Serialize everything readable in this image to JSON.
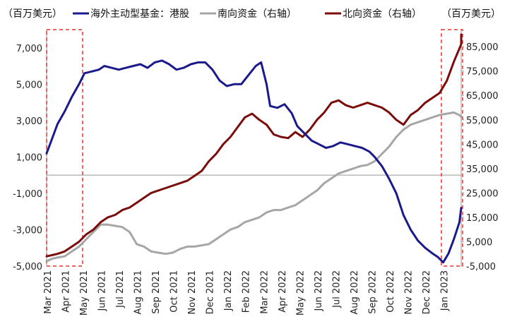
{
  "chart_data": {
    "type": "line",
    "left_unit": "（百万美元）",
    "right_unit": "（百万美元）",
    "x_labels": [
      "Mar 2021",
      "Apr 2021",
      "May 2021",
      "Jun 2021",
      "Jul 2021",
      "Aug 2021",
      "Sep 2021",
      "Oct 2021",
      "Nov 2021",
      "Dec 2021",
      "Jan 2022",
      "Feb 2022",
      "Mar 2022",
      "Apr 2022",
      "May 2022",
      "Jun 2022",
      "Jul 2022",
      "Aug 2022",
      "Sep 2022",
      "Oct 2022",
      "Nov 2022",
      "Dec 2022",
      "Jan 2023"
    ],
    "y_left": {
      "range": [
        -5000,
        8000
      ],
      "ticks": [
        "7,000",
        "5,000",
        "3,000",
        "1,000",
        "-1,000",
        "-3,000",
        "-5,000"
      ],
      "tick_values": [
        7000,
        5000,
        3000,
        1000,
        -1000,
        -3000,
        -5000
      ]
    },
    "y_right": {
      "range": [
        -5000,
        92000
      ],
      "ticks": [
        "85,000",
        "75,000",
        "65,000",
        "55,000",
        "45,000",
        "35,000",
        "25,000",
        "15,000",
        "5,000",
        "-5,000"
      ],
      "tick_values": [
        85000,
        75000,
        65000,
        55000,
        45000,
        35000,
        25000,
        15000,
        5000,
        -5000
      ]
    },
    "series": [
      {
        "name": "海外主动型基金：港股",
        "axis": "left",
        "color": "#1a1a8c",
        "points": [
          [
            0,
            1200
          ],
          [
            0.3,
            2000
          ],
          [
            0.6,
            2800
          ],
          [
            1,
            3500
          ],
          [
            1.4,
            4300
          ],
          [
            1.8,
            5000
          ],
          [
            2.1,
            5600
          ],
          [
            2.5,
            5700
          ],
          [
            2.9,
            5800
          ],
          [
            3.2,
            6000
          ],
          [
            3.6,
            5900
          ],
          [
            4,
            5800
          ],
          [
            4.4,
            5900
          ],
          [
            4.8,
            6000
          ],
          [
            5.2,
            6100
          ],
          [
            5.6,
            5900
          ],
          [
            6,
            6200
          ],
          [
            6.4,
            6300
          ],
          [
            6.8,
            6100
          ],
          [
            7.2,
            5800
          ],
          [
            7.6,
            5900
          ],
          [
            8,
            6100
          ],
          [
            8.4,
            6200
          ],
          [
            8.8,
            6200
          ],
          [
            9.2,
            5800
          ],
          [
            9.6,
            5200
          ],
          [
            10,
            4900
          ],
          [
            10.4,
            5000
          ],
          [
            10.8,
            5000
          ],
          [
            11.2,
            5500
          ],
          [
            11.6,
            6000
          ],
          [
            11.9,
            6200
          ],
          [
            12.2,
            5000
          ],
          [
            12.4,
            3800
          ],
          [
            12.8,
            3700
          ],
          [
            13.2,
            3900
          ],
          [
            13.6,
            3400
          ],
          [
            13.9,
            2700
          ],
          [
            14.3,
            2300
          ],
          [
            14.7,
            1900
          ],
          [
            15.1,
            1700
          ],
          [
            15.5,
            1500
          ],
          [
            15.9,
            1600
          ],
          [
            16.3,
            1800
          ],
          [
            16.7,
            1700
          ],
          [
            17.1,
            1600
          ],
          [
            17.5,
            1500
          ],
          [
            17.9,
            1300
          ],
          [
            18.2,
            1000
          ],
          [
            18.6,
            500
          ],
          [
            19,
            -200
          ],
          [
            19.4,
            -1000
          ],
          [
            19.8,
            -2200
          ],
          [
            20.2,
            -3000
          ],
          [
            20.6,
            -3600
          ],
          [
            21,
            -4000
          ],
          [
            21.4,
            -4300
          ],
          [
            21.7,
            -4500
          ],
          [
            22,
            -4800
          ],
          [
            22.3,
            -4300
          ],
          [
            22.6,
            -3500
          ],
          [
            22.9,
            -2600
          ],
          [
            23.2,
            -1800
          ]
        ]
      },
      {
        "name": "南向资金（右轴）",
        "axis": "right",
        "color": "#a6a6a6",
        "points": [
          [
            0,
            -3000
          ],
          [
            0.3,
            -2000
          ],
          [
            0.6,
            -1500
          ],
          [
            1,
            -1000
          ],
          [
            1.4,
            1000
          ],
          [
            1.8,
            3000
          ],
          [
            2.2,
            6000
          ],
          [
            2.6,
            9000
          ],
          [
            3,
            12000
          ],
          [
            3.4,
            12000
          ],
          [
            3.8,
            11500
          ],
          [
            4.2,
            11000
          ],
          [
            4.6,
            9000
          ],
          [
            5,
            4000
          ],
          [
            5.4,
            3000
          ],
          [
            5.8,
            1000
          ],
          [
            6.2,
            500
          ],
          [
            6.6,
            0
          ],
          [
            7,
            500
          ],
          [
            7.4,
            2000
          ],
          [
            7.8,
            3000
          ],
          [
            8.2,
            3000
          ],
          [
            8.6,
            3500
          ],
          [
            9,
            4000
          ],
          [
            9.4,
            6000
          ],
          [
            9.8,
            8000
          ],
          [
            10.2,
            10000
          ],
          [
            10.6,
            11000
          ],
          [
            11,
            13000
          ],
          [
            11.4,
            14000
          ],
          [
            11.8,
            15000
          ],
          [
            12.2,
            17000
          ],
          [
            12.6,
            18000
          ],
          [
            13,
            18000
          ],
          [
            13.4,
            19000
          ],
          [
            13.8,
            20000
          ],
          [
            14.2,
            22000
          ],
          [
            14.6,
            24000
          ],
          [
            15,
            26000
          ],
          [
            15.4,
            29000
          ],
          [
            15.8,
            31000
          ],
          [
            16.2,
            33000
          ],
          [
            16.6,
            34000
          ],
          [
            17,
            35000
          ],
          [
            17.4,
            36000
          ],
          [
            17.8,
            36500
          ],
          [
            18.2,
            38000
          ],
          [
            18.6,
            41000
          ],
          [
            19,
            44000
          ],
          [
            19.4,
            48000
          ],
          [
            19.8,
            51000
          ],
          [
            20.2,
            53000
          ],
          [
            20.6,
            54000
          ],
          [
            21,
            55000
          ],
          [
            21.4,
            56000
          ],
          [
            21.8,
            57000
          ],
          [
            22.2,
            57500
          ],
          [
            22.6,
            58000
          ],
          [
            23,
            56500
          ],
          [
            23.2,
            56000
          ]
        ]
      },
      {
        "name": "北向资金（右轴）",
        "axis": "right",
        "color": "#7b0c0c",
        "points": [
          [
            0,
            -1000
          ],
          [
            0.3,
            -500
          ],
          [
            0.6,
            0
          ],
          [
            1,
            1000
          ],
          [
            1.4,
            3000
          ],
          [
            1.8,
            5000
          ],
          [
            2.2,
            8000
          ],
          [
            2.6,
            10000
          ],
          [
            3,
            13000
          ],
          [
            3.4,
            15000
          ],
          [
            3.8,
            16000
          ],
          [
            4.2,
            18000
          ],
          [
            4.6,
            19000
          ],
          [
            5,
            21000
          ],
          [
            5.4,
            23000
          ],
          [
            5.8,
            25000
          ],
          [
            6.2,
            26000
          ],
          [
            6.6,
            27000
          ],
          [
            7,
            28000
          ],
          [
            7.4,
            29000
          ],
          [
            7.8,
            30000
          ],
          [
            8.2,
            32000
          ],
          [
            8.6,
            34000
          ],
          [
            9,
            38000
          ],
          [
            9.4,
            41000
          ],
          [
            9.8,
            45000
          ],
          [
            10.2,
            48000
          ],
          [
            10.6,
            52000
          ],
          [
            11,
            56000
          ],
          [
            11.4,
            57500
          ],
          [
            11.8,
            55000
          ],
          [
            12.2,
            53000
          ],
          [
            12.6,
            49000
          ],
          [
            13,
            48000
          ],
          [
            13.4,
            47500
          ],
          [
            13.8,
            50000
          ],
          [
            14.2,
            48000
          ],
          [
            14.6,
            51000
          ],
          [
            15,
            55000
          ],
          [
            15.4,
            58000
          ],
          [
            15.8,
            62000
          ],
          [
            16.2,
            63000
          ],
          [
            16.6,
            61000
          ],
          [
            17,
            60000
          ],
          [
            17.4,
            61000
          ],
          [
            17.8,
            62000
          ],
          [
            18.2,
            61000
          ],
          [
            18.6,
            60000
          ],
          [
            19,
            58000
          ],
          [
            19.4,
            55000
          ],
          [
            19.8,
            53000
          ],
          [
            20.2,
            57000
          ],
          [
            20.6,
            59000
          ],
          [
            21,
            62000
          ],
          [
            21.4,
            64000
          ],
          [
            21.8,
            66000
          ],
          [
            22.2,
            71000
          ],
          [
            22.6,
            79000
          ],
          [
            23,
            86000
          ],
          [
            23.2,
            90000
          ]
        ]
      }
    ]
  }
}
